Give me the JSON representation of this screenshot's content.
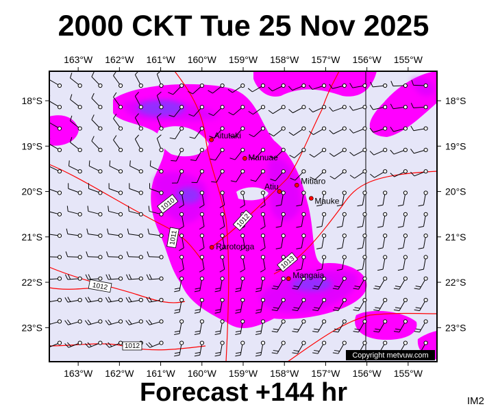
{
  "header": {
    "title": "2000 CKT Tue 25 Nov 2025"
  },
  "footer": {
    "forecast": "Forecast +144 hr",
    "tag": "IM2"
  },
  "copyright": "Copyright metvuw.com",
  "map": {
    "lon_labels": [
      "163°W",
      "162°W",
      "161°W",
      "160°W",
      "159°W",
      "158°W",
      "157°W",
      "156°W",
      "155°W"
    ],
    "lat_labels": [
      "18°S",
      "19°S",
      "20°S",
      "21°S",
      "22°S",
      "23°S"
    ],
    "lon_range": [
      -163.7,
      -154.3
    ],
    "lat_range": [
      -17.35,
      -23.75
    ],
    "colors": {
      "ocean": "#e6e6f8",
      "precip_light": "#ff00ff",
      "precip_mid": "#cc00ff",
      "precip_heavy": "#8040ff",
      "isobar": "#ff0000",
      "town": "#ff0000"
    },
    "places": [
      {
        "name": "Aitutaki",
        "lon": -159.77,
        "lat": -18.86
      },
      {
        "name": "Manuae",
        "lon": -158.96,
        "lat": -19.27
      },
      {
        "name": "Atiu",
        "lon": -158.12,
        "lat": -20.0
      },
      {
        "name": "Mitiaro",
        "lon": -157.7,
        "lat": -19.86
      },
      {
        "name": "Mauke",
        "lon": -157.35,
        "lat": -20.15
      },
      {
        "name": "Rarotonga",
        "lon": -159.76,
        "lat": -21.23
      },
      {
        "name": "Mangaia",
        "lon": -157.9,
        "lat": -21.92
      }
    ],
    "isobar_labels": [
      "1010",
      "1011",
      "1012",
      "1013",
      "1012",
      "1012"
    ]
  }
}
